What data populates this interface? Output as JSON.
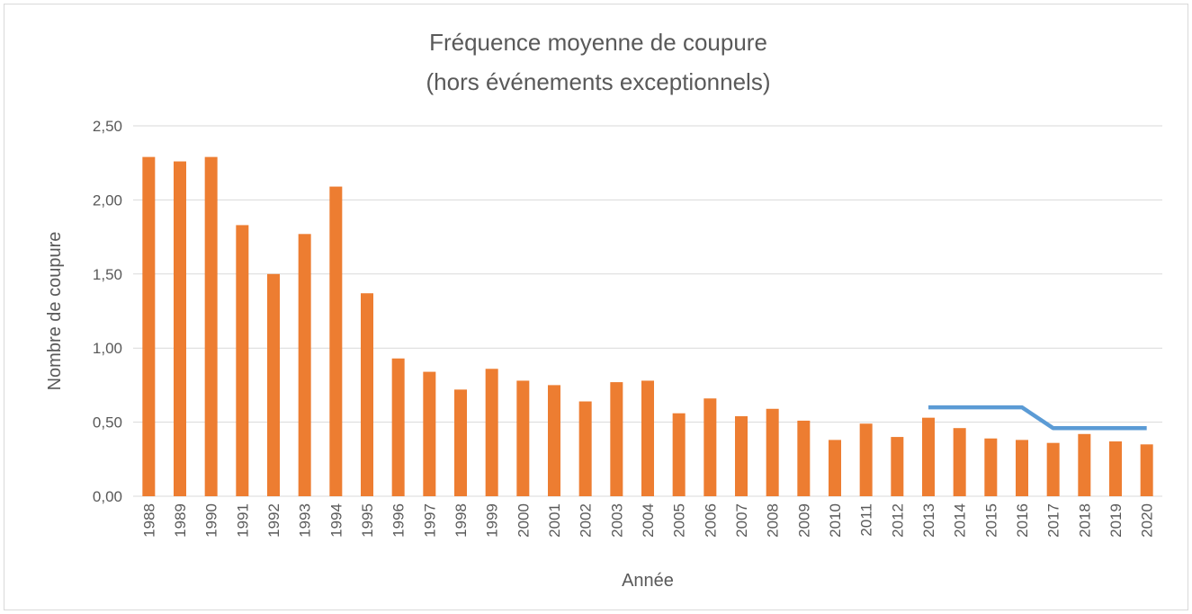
{
  "chart_data": {
    "type": "bar",
    "title": "Fréquence moyenne de coupure",
    "subtitle": "(hors événements exceptionnels)",
    "x_label": "Année",
    "y_label": "Nombre de coupure",
    "categories": [
      "1988",
      "1989",
      "1990",
      "1991",
      "1992",
      "1993",
      "1994",
      "1995",
      "1996",
      "1997",
      "1998",
      "1999",
      "2000",
      "2001",
      "2002",
      "2003",
      "2004",
      "2005",
      "2006",
      "2007",
      "2008",
      "2009",
      "2010",
      "2011",
      "2012",
      "2013",
      "2014",
      "2015",
      "2016",
      "2017",
      "2018",
      "2019",
      "2020"
    ],
    "series": [
      {
        "type": "bar",
        "color": "#ed7d31",
        "values": [
          2.29,
          2.26,
          2.29,
          1.83,
          1.5,
          1.77,
          2.09,
          1.37,
          0.93,
          0.84,
          0.72,
          0.86,
          0.78,
          0.75,
          0.64,
          0.77,
          0.78,
          0.56,
          0.66,
          0.54,
          0.59,
          0.51,
          0.38,
          0.49,
          0.4,
          0.53,
          0.46,
          0.39,
          0.38,
          0.36,
          0.42,
          0.37,
          0.35
        ]
      },
      {
        "type": "line",
        "color": "#5b9bd5",
        "values": [
          null,
          null,
          null,
          null,
          null,
          null,
          null,
          null,
          null,
          null,
          null,
          null,
          null,
          null,
          null,
          null,
          null,
          null,
          null,
          null,
          null,
          null,
          null,
          null,
          null,
          0.6,
          0.6,
          0.6,
          0.6,
          0.46,
          0.46,
          0.46,
          0.46
        ]
      }
    ],
    "ylim": [
      0,
      2.5
    ],
    "yticks": [
      {
        "value": 0,
        "label": "0,00"
      },
      {
        "value": 0.5,
        "label": "0,50"
      },
      {
        "value": 1,
        "label": "1,00"
      },
      {
        "value": 1.5,
        "label": "1,50"
      },
      {
        "value": 2,
        "label": "2,00"
      },
      {
        "value": 2.5,
        "label": "2,50"
      }
    ],
    "grid": true
  }
}
